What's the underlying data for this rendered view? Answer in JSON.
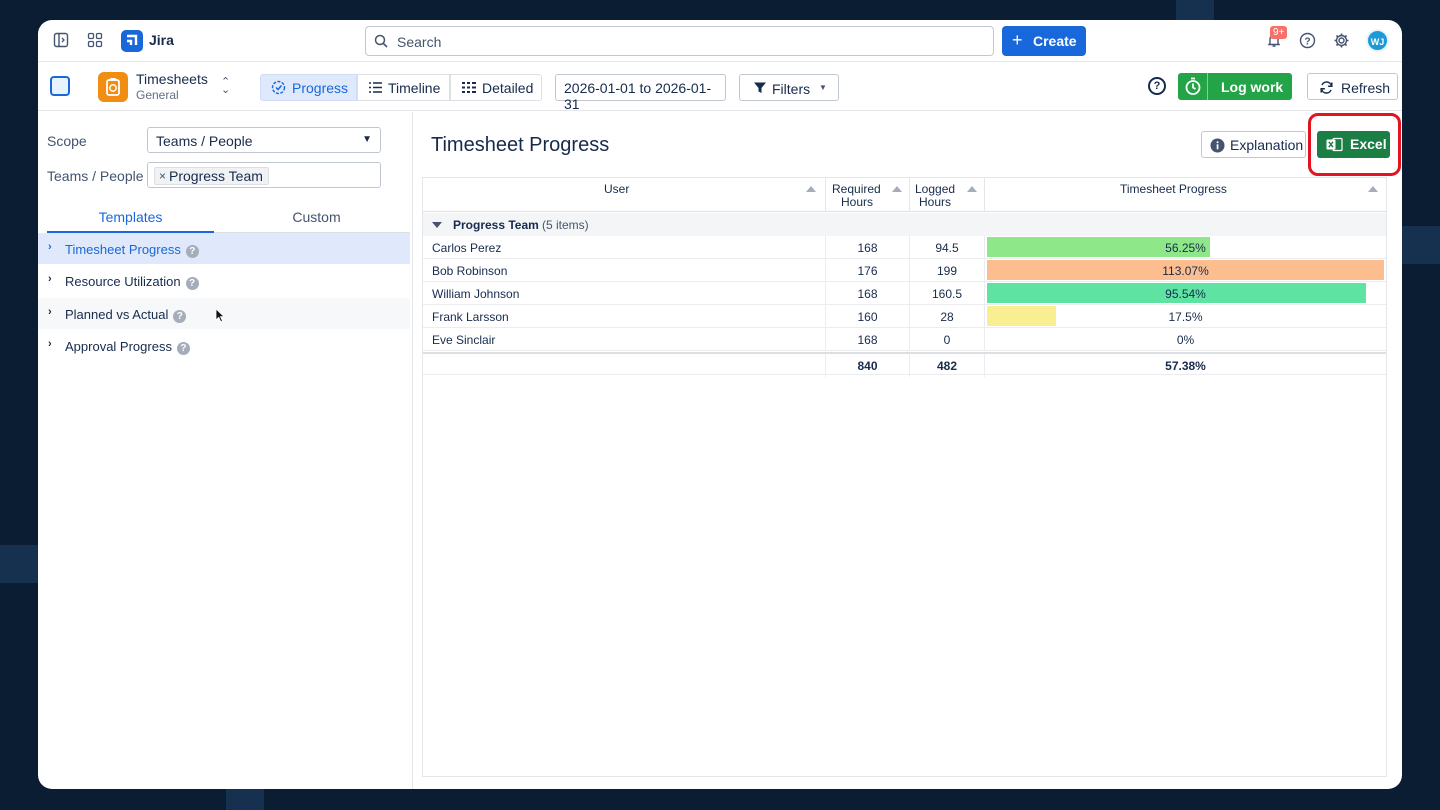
{
  "app": {
    "name": "Jira"
  },
  "topbar": {
    "search_placeholder": "Search",
    "create_label": "Create",
    "notifications_count": "9+",
    "avatar_initials": "WJ"
  },
  "toolbar": {
    "app_title": "Timesheets",
    "app_subtitle": "General",
    "views": [
      {
        "label": "Progress",
        "active": true
      },
      {
        "label": "Timeline",
        "active": false
      },
      {
        "label": "Detailed",
        "active": false
      }
    ],
    "date_range": "2026-01-01 to 2026-01-31",
    "filters_label": "Filters",
    "logwork_label": "Log work",
    "refresh_label": "Refresh"
  },
  "sidebar": {
    "scope_label": "Scope",
    "scope_value": "Teams / People",
    "teams_label": "Teams / People",
    "teams_chip": "Progress Team",
    "tabs": [
      "Templates",
      "Custom"
    ],
    "templates": [
      {
        "label": "Timesheet Progress",
        "selected": true
      },
      {
        "label": "Resource Utilization",
        "selected": false
      },
      {
        "label": "Planned vs Actual",
        "selected": false
      },
      {
        "label": "Approval Progress",
        "selected": false
      }
    ]
  },
  "main": {
    "title": "Timesheet Progress",
    "explanation_label": "Explanation",
    "excel_label": "Excel",
    "columns": {
      "user": "User",
      "required": [
        "Required",
        "Hours"
      ],
      "logged": [
        "Logged",
        "Hours"
      ],
      "progress": "Timesheet Progress"
    },
    "group": {
      "name": "Progress Team",
      "count": "(5 items)"
    },
    "rows": [
      {
        "user": "Carlos Perez",
        "required": "168",
        "logged": "94.5",
        "progress": "56.25%",
        "fraction": 0.5625,
        "color": "#8ee88a"
      },
      {
        "user": "Bob Robinson",
        "required": "176",
        "logged": "199",
        "progress": "113.07%",
        "fraction": 1.0,
        "color": "#fcbd8f"
      },
      {
        "user": "William Johnson",
        "required": "168",
        "logged": "160.5",
        "progress": "95.54%",
        "fraction": 0.9554,
        "color": "#5ee3a2"
      },
      {
        "user": "Frank Larsson",
        "required": "160",
        "logged": "28",
        "progress": "17.5%",
        "fraction": 0.175,
        "color": "#f9ee91"
      },
      {
        "user": "Eve Sinclair",
        "required": "168",
        "logged": "0",
        "progress": "0%",
        "fraction": 0,
        "color": "#ffffff"
      }
    ],
    "totals": {
      "required": "840",
      "logged": "482",
      "progress": "57.38%"
    }
  }
}
